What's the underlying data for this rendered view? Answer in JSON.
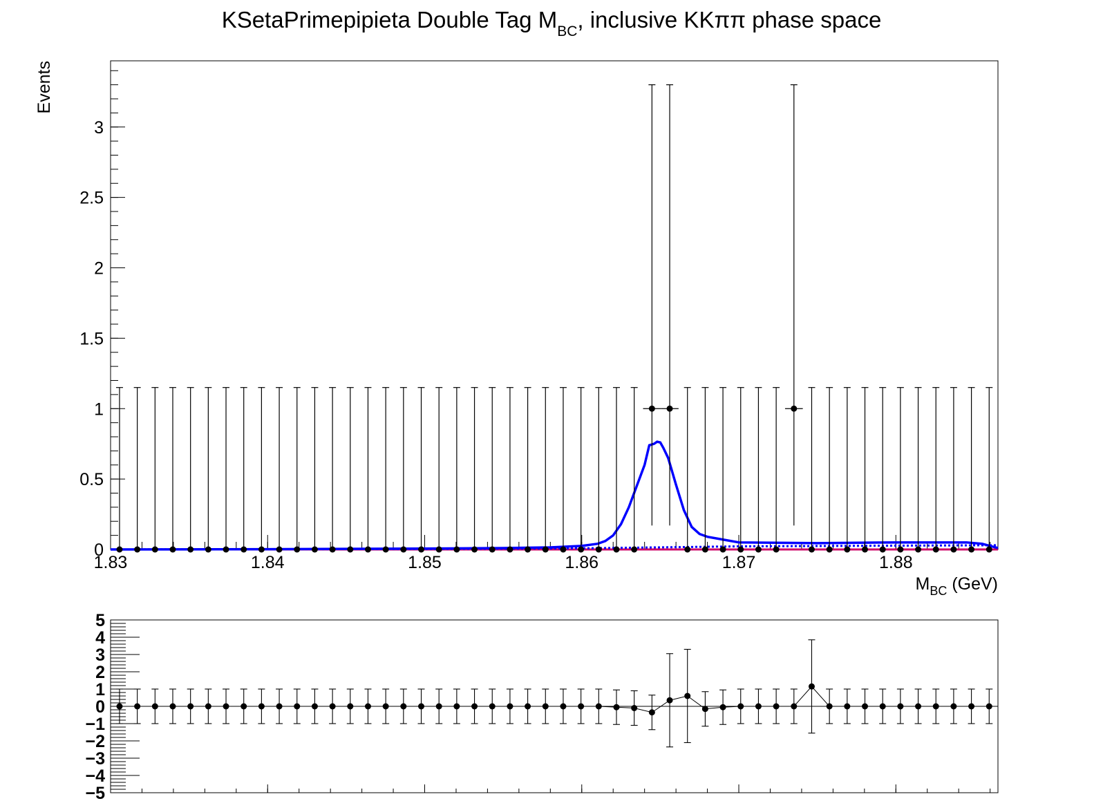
{
  "chart_data": [
    {
      "type": "scatter",
      "title_main": "KSetaPrimepipieta Double Tag M",
      "title_sub": "BC",
      "title_rest": ", inclusive KKππ phase space",
      "xlabel_main": "M",
      "xlabel_sub": "BC",
      "xlabel_rest": " (GeV)",
      "ylabel": "Events",
      "xlim": [
        1.83,
        1.8865
      ],
      "ylim": [
        0,
        3.47
      ],
      "x_ticks": [
        1.83,
        1.84,
        1.85,
        1.86,
        1.87,
        1.88
      ],
      "x_tick_labels": [
        "1.83",
        "1.84",
        "1.85",
        "1.86",
        "1.87",
        "1.88"
      ],
      "y_ticks": [
        0,
        0.5,
        1,
        1.5,
        2,
        2.5,
        3
      ],
      "y_tick_labels": [
        "0",
        "0.5",
        "1",
        "1.5",
        "2",
        "2.5",
        "3"
      ],
      "bin_width": 0.00113,
      "data": {
        "x_first": 1.83057,
        "values": [
          0,
          0,
          0,
          0,
          0,
          0,
          0,
          0,
          0,
          0,
          0,
          0,
          0,
          0,
          0,
          0,
          0,
          0,
          0,
          0,
          0,
          0,
          0,
          0,
          0,
          0,
          0,
          0,
          0,
          0,
          1,
          1,
          0,
          0,
          0,
          0,
          0,
          0,
          1,
          0,
          0,
          0,
          0,
          0,
          0,
          0,
          0,
          0,
          0,
          0
        ],
        "err_up_zero": 1.15,
        "err_up_one": 2.3,
        "err_down_one": 0.83,
        "color": "#000000"
      },
      "total_fit": {
        "color": "#0000ff",
        "x": [
          1.83,
          1.84,
          1.85,
          1.855,
          1.858,
          1.86,
          1.861,
          1.8615,
          1.862,
          1.8625,
          1.863,
          1.8635,
          1.864,
          1.8643,
          1.8646,
          1.8648,
          1.865,
          1.8652,
          1.8655,
          1.866,
          1.8665,
          1.867,
          1.8675,
          1.868,
          1.869,
          1.87,
          1.875,
          1.88,
          1.8845,
          1.8855,
          1.886,
          1.8865
        ],
        "y": [
          0,
          0.002,
          0.006,
          0.01,
          0.015,
          0.025,
          0.04,
          0.06,
          0.1,
          0.18,
          0.3,
          0.45,
          0.6,
          0.74,
          0.75,
          0.765,
          0.76,
          0.72,
          0.65,
          0.46,
          0.28,
          0.16,
          0.11,
          0.09,
          0.07,
          0.05,
          0.045,
          0.05,
          0.05,
          0.04,
          0.025,
          0.01
        ]
      },
      "background_fit": {
        "color": "#0000ff",
        "style": "dotted",
        "x": [
          1.83,
          1.85,
          1.86,
          1.865,
          1.87,
          1.8865
        ],
        "y": [
          0,
          0.003,
          0.008,
          0.015,
          0.022,
          0.03
        ]
      },
      "baseline": {
        "color": "#cc0066",
        "y": 0
      }
    },
    {
      "type": "scatter",
      "panel": "pull",
      "ylim": [
        -5,
        5
      ],
      "y_ticks": [
        -5,
        -4,
        -3,
        -2,
        -1,
        0,
        1,
        2,
        3,
        4,
        5
      ],
      "y_tick_labels": [
        "−5",
        "−4",
        "−3",
        "−2",
        "−1",
        "0",
        "1",
        "2",
        "3",
        "4",
        "5"
      ],
      "values": [
        0,
        0,
        0,
        0,
        0,
        0,
        0,
        0,
        0,
        0,
        0,
        0,
        0,
        0,
        0,
        0,
        0,
        0,
        0,
        0,
        0,
        0,
        0,
        0,
        0,
        0,
        0,
        0,
        -0.05,
        -0.1,
        -0.35,
        0.35,
        0.6,
        -0.15,
        -0.05,
        0,
        0,
        0,
        0,
        1.15,
        0,
        0,
        0,
        0,
        0,
        0,
        0,
        0,
        0,
        0
      ],
      "err": [
        1,
        1,
        1,
        1,
        1,
        1,
        1,
        1,
        1,
        1,
        1,
        1,
        1,
        1,
        1,
        1,
        1,
        1,
        1,
        1,
        1,
        1,
        1,
        1,
        1,
        1,
        1,
        1,
        1,
        1,
        1,
        2.7,
        2.7,
        1,
        1,
        1,
        1,
        1,
        1,
        2.7,
        1,
        1,
        1,
        1,
        1,
        1,
        1,
        1,
        1,
        1
      ],
      "color": "#000000"
    }
  ]
}
